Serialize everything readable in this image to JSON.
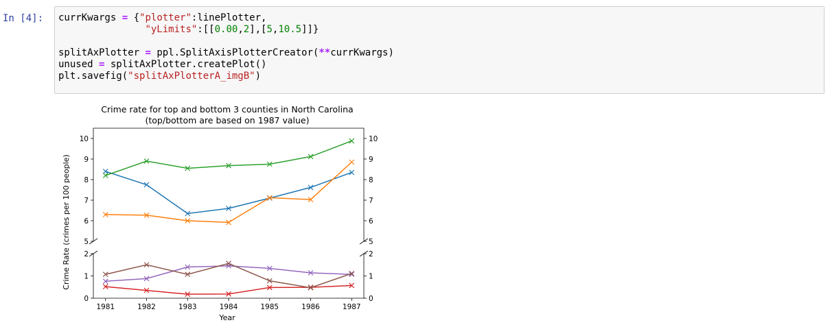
{
  "cell": {
    "prompt": "In [4]:",
    "code": {
      "l1_var": "currKwargs",
      "l1_eq": "=",
      "l1_open": " {",
      "l1_key": "\"plotter\"",
      "l1_rest": ":linePlotter,",
      "l2_key": "\"yLimits\"",
      "l2_p1": ":[[",
      "l2_n1": "0.00",
      "l2_c1": ",",
      "l2_n2": "2",
      "l2_p2": "],[",
      "l2_n3": "5",
      "l2_c2": ",",
      "l2_n4": "10.5",
      "l2_p3": "]]}",
      "l4_var": "splitAxPlotter",
      "l4_eq": "=",
      "l4_call": " ppl.SplitAxisPlotterCreator(",
      "l4_op": "**",
      "l4_rest": "currKwargs)",
      "l5_var": "unused",
      "l5_eq": "=",
      "l5_rest": " splitAxPlotter.createPlot()",
      "l6_call": "plt.savefig(",
      "l6_str": "\"splitAxPlotterA_imgB\"",
      "l6_end": ")"
    }
  },
  "chart_data": {
    "type": "line",
    "title": "Crime rate for top and bottom 3 counties in North Carolina",
    "subtitle": "(top/bottom are based on 1987 value)",
    "xlabel": "Year",
    "ylabel": "Crime Rate (crimes per 100 people)",
    "x": [
      1981,
      1982,
      1983,
      1984,
      1985,
      1986,
      1987
    ],
    "xticks": [
      "1981",
      "1982",
      "1983",
      "1984",
      "1985",
      "1986",
      "1987"
    ],
    "split_axis": true,
    "ylim_top": [
      5,
      10.5
    ],
    "ylim_bottom": [
      0,
      2
    ],
    "yticks_top": [
      "5",
      "6",
      "7",
      "8",
      "9",
      "10"
    ],
    "yticks_bottom": [
      "0",
      "1",
      "2"
    ],
    "marker": "x",
    "grid": false,
    "legend": false,
    "series": [
      {
        "color": "#1f77b4",
        "values": [
          8.4,
          7.75,
          6.35,
          6.6,
          7.1,
          7.62,
          8.35
        ]
      },
      {
        "color": "#ff7f0e",
        "values": [
          6.3,
          6.27,
          6.0,
          5.92,
          7.12,
          7.03,
          8.85
        ]
      },
      {
        "color": "#2ca02c",
        "values": [
          8.2,
          8.9,
          8.55,
          8.68,
          8.75,
          9.12,
          9.88
        ]
      },
      {
        "color": "#d62728",
        "values": [
          0.52,
          0.35,
          0.18,
          0.19,
          0.48,
          0.49,
          0.57
        ]
      },
      {
        "color": "#9467bd",
        "values": [
          0.76,
          0.88,
          1.4,
          1.45,
          1.34,
          1.14,
          1.07
        ]
      },
      {
        "color": "#8c564b",
        "values": [
          1.07,
          1.5,
          1.07,
          1.56,
          0.78,
          0.47,
          1.11
        ]
      }
    ]
  }
}
